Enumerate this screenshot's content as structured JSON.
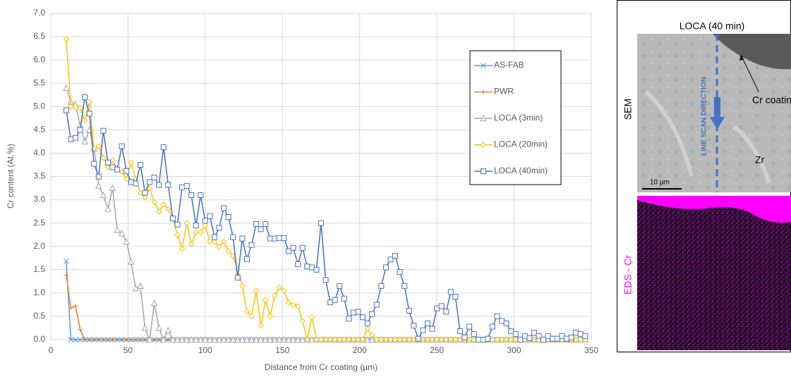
{
  "chart_data": {
    "type": "line",
    "y_axis_title": "Cr content (At.%)",
    "x_axis_title": "Distance from Cr coating (µm)",
    "xlim": [
      0,
      350
    ],
    "ylim": [
      0,
      7
    ],
    "xticks": [
      0,
      50,
      100,
      150,
      200,
      250,
      300,
      350
    ],
    "yticks": [
      {
        "value": 0,
        "label": "0.0"
      },
      0.5,
      {
        "value": 1,
        "label": "1.0"
      },
      1.5,
      {
        "value": 2,
        "label": "2.0"
      },
      2.5,
      {
        "value": 3,
        "label": "3.0"
      },
      3.5,
      {
        "value": 4,
        "label": "4.0"
      },
      4.5,
      {
        "value": 5,
        "label": "5.0"
      },
      5.5,
      {
        "value": 6,
        "label": "6.0"
      },
      6.5,
      {
        "value": 7,
        "label": "7.0"
      }
    ],
    "grid": true,
    "legend": "right",
    "x": [
      10,
      13,
      16,
      19,
      22,
      25,
      28,
      31,
      34,
      37,
      40,
      43,
      46,
      49,
      52,
      55,
      58,
      61,
      64,
      67,
      70,
      73,
      76,
      79,
      82,
      85,
      88,
      91,
      94,
      97,
      100,
      103,
      106,
      109,
      112,
      115,
      118,
      121,
      124,
      127,
      130,
      133,
      136,
      139,
      142,
      145,
      148,
      151,
      154,
      157,
      160,
      163,
      166,
      169,
      172,
      175,
      178,
      181,
      184,
      187,
      190,
      193,
      196,
      199,
      202,
      205,
      208,
      211,
      214,
      217,
      220,
      223,
      226,
      229,
      232,
      235,
      238,
      241,
      244,
      247,
      250,
      253,
      256,
      259,
      262,
      265,
      268,
      271,
      274,
      277,
      280,
      283,
      286,
      289,
      292,
      295,
      298,
      301,
      304,
      307,
      310,
      313,
      316,
      319,
      322,
      325,
      328,
      331,
      334,
      337,
      340,
      343,
      346
    ],
    "series": [
      {
        "name": "AS-FAB",
        "color": "#5b9bd5",
        "marker": "x",
        "values": [
          1.68,
          0,
          0,
          0,
          0,
          0,
          0,
          0,
          0,
          0,
          0,
          0,
          0,
          0,
          0,
          0,
          0,
          0,
          0,
          0,
          0,
          0,
          0,
          0,
          0,
          0,
          0,
          0,
          0,
          0,
          0,
          0,
          0,
          0,
          0,
          0,
          0,
          0,
          0,
          0,
          0,
          0,
          0,
          0,
          0,
          0,
          0,
          0,
          0,
          0,
          0,
          0,
          0,
          0,
          0,
          0,
          0,
          0,
          0,
          0,
          0,
          0,
          0,
          0,
          0,
          0,
          0,
          0,
          0,
          0,
          0,
          0,
          0,
          0,
          0,
          0,
          0,
          0,
          0,
          0,
          0,
          0,
          0,
          0,
          0,
          0,
          0,
          0,
          0,
          0,
          0,
          0,
          0,
          0,
          0,
          0,
          0,
          0,
          0,
          0,
          0,
          0,
          0,
          0,
          0,
          0,
          0,
          0,
          0,
          0,
          0,
          0,
          0
        ]
      },
      {
        "name": "PWR",
        "color": "#ed7d31",
        "marker": "plus",
        "values": [
          1.38,
          0.68,
          0.72,
          0.22,
          0,
          0,
          0,
          0,
          0,
          0,
          0,
          0,
          0,
          0,
          0,
          0,
          0,
          0,
          0,
          0,
          0,
          0,
          0,
          0,
          0,
          0,
          0,
          0,
          0,
          0,
          0,
          0,
          0,
          0,
          0,
          0,
          0,
          0,
          0,
          0,
          0,
          0,
          0,
          0,
          0,
          0,
          0,
          0,
          0,
          0,
          0,
          0,
          0,
          0,
          0,
          0,
          0,
          0,
          0,
          0,
          0,
          0,
          0,
          0,
          0,
          0,
          0,
          0,
          0,
          0,
          0,
          0,
          0,
          0,
          0,
          0,
          0,
          0,
          0,
          0,
          0,
          0,
          0,
          0,
          0,
          0,
          0,
          0,
          0,
          0,
          0,
          0,
          0,
          0,
          0,
          0,
          0,
          0,
          0,
          0,
          0,
          0,
          0,
          0,
          0,
          0,
          0,
          0,
          0,
          0,
          0,
          0,
          0
        ]
      },
      {
        "name": "LOCA (3min)",
        "color": "#a5a5a5",
        "marker": "triangle",
        "values": [
          5.4,
          5.1,
          5.05,
          4.6,
          4.25,
          4.5,
          4.1,
          3.3,
          3.1,
          2.8,
          3.25,
          2.35,
          2.28,
          2.1,
          1.67,
          1.1,
          1.15,
          0.25,
          0,
          0.78,
          0.25,
          0,
          0.2,
          0,
          0,
          0,
          0,
          0,
          0,
          0,
          0,
          0,
          0,
          0,
          0,
          0,
          0,
          0,
          0,
          0,
          0,
          0,
          0,
          0,
          0,
          0,
          0,
          0,
          0,
          0,
          0,
          0,
          0,
          0,
          0,
          0,
          0,
          0,
          0,
          0,
          0,
          0,
          0,
          0,
          0,
          0,
          0,
          0,
          0,
          0,
          0,
          0,
          0,
          0,
          0,
          0,
          0,
          0,
          0,
          0,
          0,
          0,
          0,
          0,
          0,
          0,
          0,
          0,
          0,
          0,
          0,
          0,
          0,
          0,
          0,
          0,
          0,
          0,
          0,
          0,
          0,
          0,
          0,
          0,
          0,
          0,
          0,
          0,
          0,
          0,
          0,
          0,
          0
        ]
      },
      {
        "name": "LOCA (20min)",
        "color": "#ffc000",
        "marker": "diamond",
        "values": [
          6.45,
          5.0,
          4.98,
          4.97,
          4.7,
          5.1,
          4.1,
          4.15,
          3.9,
          3.7,
          3.85,
          3.65,
          3.6,
          3.45,
          3.8,
          3.45,
          3.15,
          3.05,
          3.25,
          2.95,
          2.75,
          2.9,
          2.8,
          2.6,
          2.25,
          1.95,
          2.5,
          2.05,
          2.3,
          2.3,
          2.45,
          2.1,
          2.1,
          2.0,
          2.1,
          1.9,
          1.8,
          1.5,
          1.15,
          0.6,
          0.5,
          1.05,
          0.3,
          0.85,
          0.5,
          0.95,
          1.12,
          1.05,
          0.8,
          0.75,
          0.72,
          0.4,
          0,
          0.48,
          0,
          0,
          0,
          0,
          0,
          0,
          0,
          0,
          0,
          0,
          0,
          0.23,
          0.1,
          0,
          0,
          0,
          0,
          0,
          0,
          0,
          0,
          0,
          0,
          0,
          0,
          0,
          0,
          0,
          0,
          0,
          0,
          0,
          0,
          0,
          0,
          0,
          0,
          0,
          0,
          0,
          0,
          0,
          0,
          0,
          0,
          0,
          0,
          0,
          0,
          0,
          0,
          0,
          0,
          0,
          0,
          0,
          0,
          0,
          0
        ]
      },
      {
        "name": "LOCA (40min)",
        "color": "#4472c4",
        "marker": "square",
        "values": [
          4.92,
          4.3,
          4.33,
          4.5,
          5.2,
          4.85,
          3.77,
          3.5,
          4.48,
          3.8,
          3.7,
          3.65,
          4.15,
          3.62,
          3.38,
          3.35,
          3.75,
          3.15,
          3.38,
          3.48,
          3.32,
          4.13,
          3.32,
          2.6,
          2.47,
          3.27,
          3.3,
          3.1,
          2.45,
          3.1,
          2.55,
          2.65,
          2.2,
          2.4,
          2.82,
          2.63,
          2.2,
          1.33,
          2.17,
          1.73,
          2.03,
          2.48,
          2.37,
          2.48,
          2.17,
          2.17,
          2.18,
          2.18,
          1.9,
          1.97,
          1.62,
          1.97,
          1.57,
          1.55,
          1.5,
          2.5,
          1.28,
          0.8,
          0.85,
          1.15,
          0.88,
          0.45,
          0.58,
          0.6,
          0.48,
          0.35,
          0.55,
          0.75,
          1.15,
          1.55,
          1.72,
          1.8,
          1.45,
          1.15,
          0.62,
          0.3,
          0.02,
          0.2,
          0.35,
          0.23,
          0.67,
          0.72,
          0.6,
          1.02,
          0.92,
          0.18,
          0.05,
          0.28,
          0.12,
          0,
          0,
          0.02,
          0.28,
          0.5,
          0.4,
          0.35,
          0.18,
          0.12,
          0,
          0.08,
          0.03,
          0.15,
          0.08,
          0,
          0.08,
          0.02,
          0.02,
          0.08,
          0.02,
          0.05,
          0.15,
          0.12,
          0.08
        ]
      }
    ]
  },
  "image_panel": {
    "title": "LOCA (40 min)",
    "sem_label": "SEM",
    "eds_label": "EDS - Cr",
    "scan_label": "LINE SCAN DIRECTION",
    "coating_label": "Cr coating",
    "matrix_label": "Zr",
    "scale_label": "10 µm"
  }
}
